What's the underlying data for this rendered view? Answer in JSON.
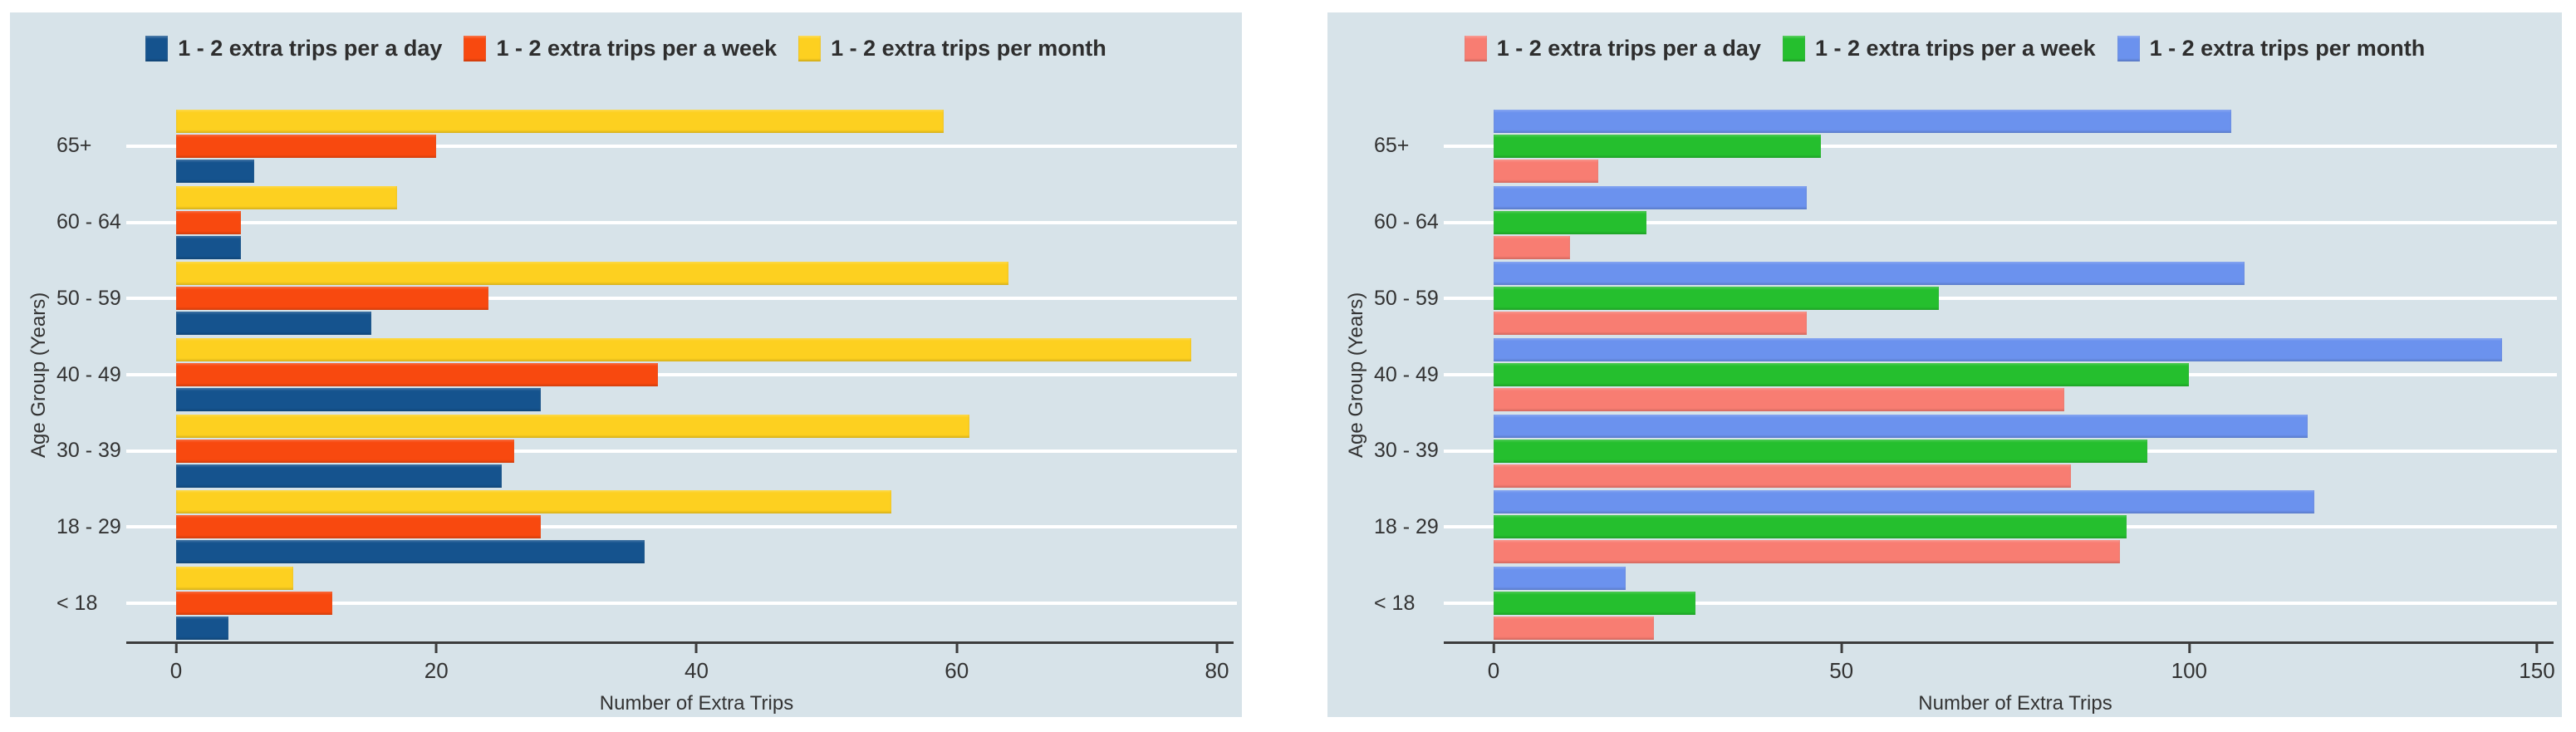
{
  "style": {
    "page_background": "#ffffff",
    "panel_background": "#d7e3e9",
    "grid_color": "#ffffff",
    "axis_color": "#3c3c3c",
    "text_color": "#333333"
  },
  "chart_data": [
    {
      "type": "bar",
      "orientation": "horizontal",
      "title": "",
      "xlabel": "Number of Extra Trips",
      "ylabel": "Age Group (Years)",
      "categories_order": "top-to-bottom",
      "categories": [
        "65+",
        "60 - 64",
        "50 - 59",
        "40 - 49",
        "30 - 39",
        "18 - 29",
        "< 18"
      ],
      "series": [
        {
          "name": "1 - 2 extra trips per a day",
          "color": "#15538e",
          "values": [
            6,
            5,
            15,
            28,
            25,
            36,
            4
          ]
        },
        {
          "name": "1 - 2 extra trips per a week",
          "color": "#f8490f",
          "values": [
            20,
            5,
            24,
            37,
            26,
            28,
            12
          ]
        },
        {
          "name": "1 - 2 extra trips per month",
          "color": "#fdd020",
          "values": [
            59,
            17,
            64,
            78,
            61,
            55,
            9
          ]
        }
      ],
      "bar_order_within_group": "month-top, week-middle, day-bottom",
      "xlim": [
        0,
        80
      ],
      "x_ticks": [
        0,
        20,
        40,
        60,
        80
      ],
      "legend_position": "top",
      "grid": "horizontal-white-category-lines"
    },
    {
      "type": "bar",
      "orientation": "horizontal",
      "title": "",
      "xlabel": "Number of Extra Trips",
      "ylabel": "Age Group (Years)",
      "categories_order": "top-to-bottom",
      "categories": [
        "65+",
        "60 - 64",
        "50 - 59",
        "40 - 49",
        "30 - 39",
        "18 - 29",
        "< 18"
      ],
      "series": [
        {
          "name": "1 - 2 extra trips per a day",
          "color": "#f87d72",
          "values": [
            15,
            11,
            45,
            82,
            83,
            90,
            23
          ]
        },
        {
          "name": "1 - 2 extra trips per a week",
          "color": "#25bf2e",
          "values": [
            47,
            22,
            64,
            100,
            94,
            91,
            29
          ]
        },
        {
          "name": "1 - 2 extra trips per month",
          "color": "#6b92ee",
          "values": [
            106,
            45,
            108,
            145,
            117,
            118,
            19
          ]
        }
      ],
      "bar_order_within_group": "month-top, week-middle, day-bottom",
      "xlim": [
        0,
        150
      ],
      "x_ticks": [
        0,
        50,
        100,
        150
      ],
      "legend_position": "top",
      "grid": "horizontal-white-category-lines"
    }
  ]
}
